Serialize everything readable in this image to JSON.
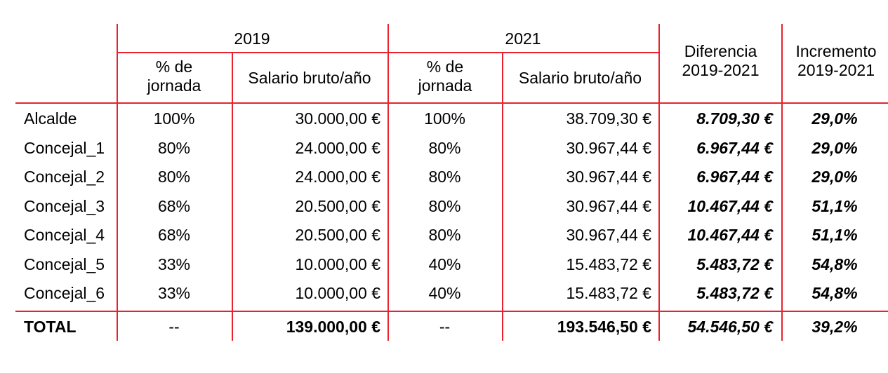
{
  "header": {
    "year_2019": "2019",
    "year_2021": "2021",
    "diff": "Diferencia 2019-2021",
    "incr": "Incremento 2019-2021",
    "pct_jornada": "% de jornada",
    "salario": "Salario bruto/año"
  },
  "rows": [
    {
      "name": "Alcalde",
      "pct19": "100%",
      "sal19": "30.000,00 €",
      "pct21": "100%",
      "sal21": "38.709,30 €",
      "diff": "8.709,30 €",
      "incr": "29,0%"
    },
    {
      "name": "Concejal_1",
      "pct19": "80%",
      "sal19": "24.000,00 €",
      "pct21": "80%",
      "sal21": "30.967,44 €",
      "diff": "6.967,44 €",
      "incr": "29,0%"
    },
    {
      "name": "Concejal_2",
      "pct19": "80%",
      "sal19": "24.000,00 €",
      "pct21": "80%",
      "sal21": "30.967,44 €",
      "diff": "6.967,44 €",
      "incr": "29,0%"
    },
    {
      "name": "Concejal_3",
      "pct19": "68%",
      "sal19": "20.500,00 €",
      "pct21": "80%",
      "sal21": "30.967,44 €",
      "diff": "10.467,44 €",
      "incr": "51,1%"
    },
    {
      "name": "Concejal_4",
      "pct19": "68%",
      "sal19": "20.500,00 €",
      "pct21": "80%",
      "sal21": "30.967,44 €",
      "diff": "10.467,44 €",
      "incr": "51,1%"
    },
    {
      "name": "Concejal_5",
      "pct19": "33%",
      "sal19": "10.000,00 €",
      "pct21": "40%",
      "sal21": "15.483,72 €",
      "diff": "5.483,72 €",
      "incr": "54,8%"
    },
    {
      "name": "Concejal_6",
      "pct19": "33%",
      "sal19": "10.000,00 €",
      "pct21": "40%",
      "sal21": "15.483,72 €",
      "diff": "5.483,72 €",
      "incr": "54,8%"
    }
  ],
  "total": {
    "name": "TOTAL",
    "pct19": "--",
    "sal19": "139.000,00 €",
    "pct21": "--",
    "sal21": "193.546,50 €",
    "diff": "54.546,50 €",
    "incr": "39,2%"
  },
  "colors": {
    "grid": "#e8232e",
    "text": "#000000"
  }
}
